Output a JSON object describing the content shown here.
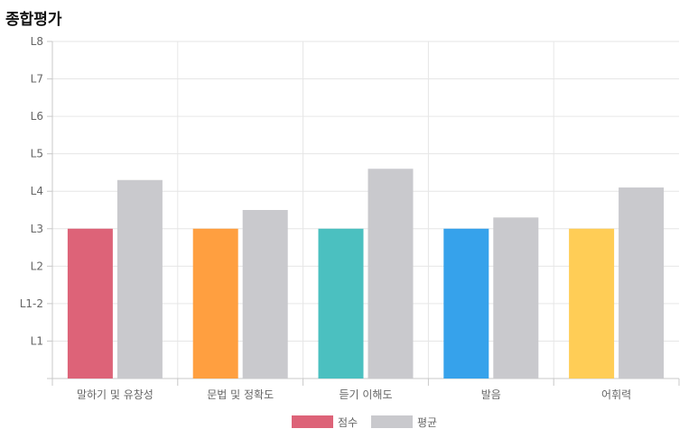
{
  "header": {
    "title": "종합평가"
  },
  "chart_data": {
    "type": "bar",
    "categories": [
      "말하기 및 유창성",
      "문법 및 정확도",
      "듣기 이해도",
      "발음",
      "어휘력"
    ],
    "y_levels": [
      "",
      "L1",
      "L1-2",
      "L2",
      "L3",
      "L4",
      "L5",
      "L6",
      "L7",
      "L8"
    ],
    "series": [
      {
        "name": "점수",
        "values": [
          4,
          4,
          4,
          4,
          4
        ],
        "colors": [
          "#dd6378",
          "#ff9f40",
          "#4bc0c0",
          "#36a2eb",
          "#ffcd56"
        ]
      },
      {
        "name": "평균",
        "values": [
          5.3,
          4.5,
          5.6,
          4.3,
          5.1
        ],
        "colors": [
          "#c9c9cd",
          "#c9c9cd",
          "#c9c9cd",
          "#c9c9cd",
          "#c9c9cd"
        ]
      }
    ],
    "ylim": [
      0,
      9
    ],
    "grid": true,
    "legend_position": "bottom",
    "legend_colors": [
      "#dd6378",
      "#c9c9cd"
    ]
  }
}
